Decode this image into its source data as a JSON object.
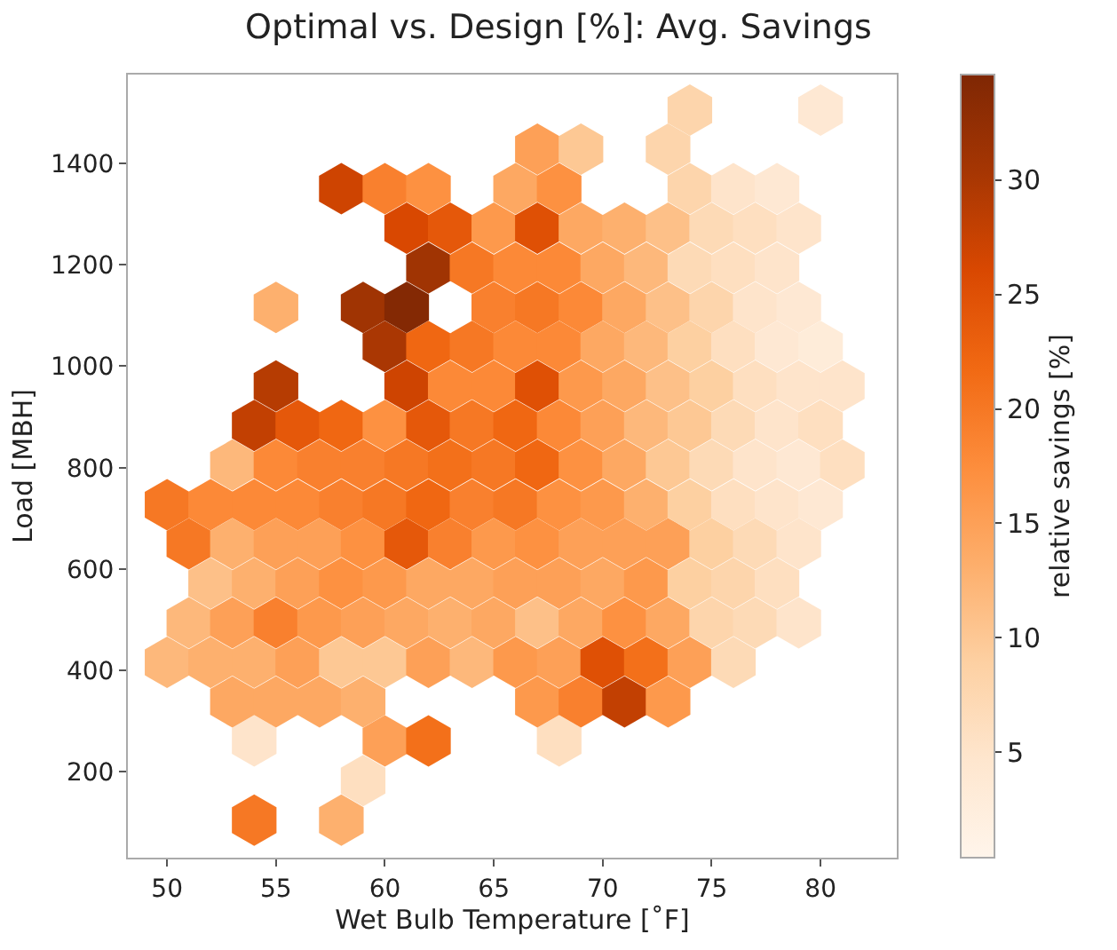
{
  "chart_data": {
    "type": "scatter",
    "title": "Optimal vs. Design [%]: Avg. Savings",
    "xlabel": "Wet Bulb Temperature [˚F]",
    "ylabel": "Load [MBH]",
    "clabel": "relative savings [%]",
    "xlim": [
      48.2,
      83.5
    ],
    "xticks": [
      50,
      55,
      60,
      65,
      70,
      75,
      80
    ],
    "ylim": [
      31,
      1575
    ],
    "yticks": [
      200,
      400,
      600,
      800,
      1000,
      1200,
      1400
    ],
    "clim": [
      0.4,
      34.6
    ],
    "cticks": [
      5,
      10,
      15,
      20,
      25,
      30
    ],
    "x": [
      54,
      58,
      59,
      54,
      60,
      62,
      68,
      53,
      55,
      57,
      59,
      67,
      69,
      71,
      73,
      50,
      52,
      54,
      56,
      58,
      60,
      62,
      64,
      66,
      68,
      70,
      72,
      74,
      76,
      51,
      53,
      55,
      57,
      59,
      61,
      63,
      65,
      67,
      69,
      71,
      73,
      75,
      77,
      79,
      52,
      54,
      56,
      58,
      60,
      62,
      64,
      66,
      68,
      70,
      72,
      74,
      76,
      78,
      51,
      53,
      55,
      57,
      59,
      61,
      63,
      65,
      67,
      69,
      71,
      73,
      75,
      77,
      79,
      50,
      52,
      54,
      56,
      58,
      60,
      62,
      64,
      66,
      68,
      70,
      72,
      74,
      76,
      78,
      80,
      53,
      55,
      57,
      59,
      61,
      63,
      65,
      67,
      69,
      71,
      73,
      75,
      77,
      79,
      81,
      54,
      56,
      58,
      60,
      62,
      64,
      66,
      68,
      70,
      72,
      74,
      76,
      78,
      80,
      55,
      61,
      63,
      65,
      67,
      69,
      71,
      73,
      75,
      77,
      79,
      81,
      60,
      62,
      64,
      66,
      68,
      70,
      72,
      74,
      76,
      78,
      80,
      55,
      59,
      61,
      65,
      67,
      69,
      71,
      73,
      75,
      77,
      79,
      62,
      64,
      66,
      68,
      70,
      72,
      74,
      76,
      78,
      61,
      63,
      65,
      67,
      69,
      71,
      73,
      75,
      77,
      79,
      58,
      60,
      62,
      66,
      68,
      74,
      76,
      78,
      67,
      69,
      73,
      74,
      80
    ],
    "values": [
      105,
      105,
      183,
      261,
      261,
      261,
      261,
      338,
      338,
      338,
      338,
      338,
      338,
      338,
      338,
      416,
      416,
      416,
      416,
      416,
      416,
      416,
      416,
      416,
      416,
      416,
      416,
      416,
      416,
      494,
      494,
      494,
      494,
      494,
      494,
      494,
      494,
      494,
      494,
      494,
      494,
      494,
      494,
      494,
      572,
      572,
      572,
      572,
      572,
      572,
      572,
      572,
      572,
      572,
      572,
      572,
      572,
      572,
      650,
      650,
      650,
      650,
      650,
      650,
      650,
      650,
      650,
      650,
      650,
      650,
      650,
      650,
      650,
      727,
      727,
      727,
      727,
      727,
      727,
      727,
      727,
      727,
      727,
      727,
      727,
      727,
      727,
      727,
      727,
      805,
      805,
      805,
      805,
      805,
      805,
      805,
      805,
      805,
      805,
      805,
      805,
      805,
      805,
      805,
      883,
      883,
      883,
      883,
      883,
      883,
      883,
      883,
      883,
      883,
      883,
      883,
      883,
      883,
      961,
      961,
      961,
      961,
      961,
      961,
      961,
      961,
      961,
      961,
      961,
      961,
      1039,
      1039,
      1039,
      1039,
      1039,
      1039,
      1039,
      1039,
      1039,
      1039,
      1039,
      1116,
      1116,
      1116,
      1116,
      1116,
      1116,
      1116,
      1116,
      1116,
      1116,
      1116,
      1194,
      1194,
      1194,
      1194,
      1194,
      1194,
      1194,
      1194,
      1194,
      1272,
      1272,
      1272,
      1272,
      1272,
      1272,
      1272,
      1272,
      1272,
      1272,
      1350,
      1350,
      1350,
      1350,
      1350,
      1350,
      1350,
      1350,
      1428,
      1428,
      1428,
      1505,
      1505
    ],
    "cvalues": [
      20,
      13,
      6,
      5,
      15,
      21,
      6,
      14,
      14,
      14,
      13,
      16,
      19,
      28,
      16,
      12,
      13,
      13,
      15,
      10,
      10,
      15,
      12,
      16,
      15,
      25,
      21,
      15,
      7,
      12,
      15,
      19,
      16,
      15,
      14,
      13,
      14,
      11,
      14,
      17,
      14,
      8,
      7,
      5,
      11,
      13,
      15,
      17,
      16,
      14,
      14,
      15,
      15,
      14,
      16,
      9,
      8,
      6,
      20,
      13,
      15,
      15,
      17,
      24,
      19,
      16,
      17,
      15,
      15,
      15,
      9,
      7,
      5,
      20,
      18,
      18,
      18,
      19,
      20,
      22,
      19,
      20,
      17,
      16,
      13,
      9,
      6,
      5,
      4,
      12,
      18,
      19,
      19,
      20,
      21,
      20,
      22,
      17,
      14,
      10,
      7,
      5,
      4,
      6,
      28,
      24,
      22,
      17,
      24,
      20,
      22,
      18,
      15,
      12,
      10,
      7,
      5,
      6,
      29,
      27,
      18,
      18,
      25,
      16,
      14,
      11,
      9,
      6,
      5,
      5,
      30,
      22,
      20,
      18,
      18,
      14,
      12,
      9,
      6,
      4,
      3,
      13,
      31,
      34,
      19,
      20,
      18,
      14,
      11,
      8,
      5,
      4,
      31,
      20,
      18,
      18,
      14,
      12,
      7,
      6,
      5,
      26,
      24,
      16,
      25,
      14,
      13,
      11,
      7,
      6,
      5,
      27,
      19,
      17,
      14,
      17,
      8,
      5,
      4,
      15,
      10,
      8,
      8,
      4
    ]
  }
}
